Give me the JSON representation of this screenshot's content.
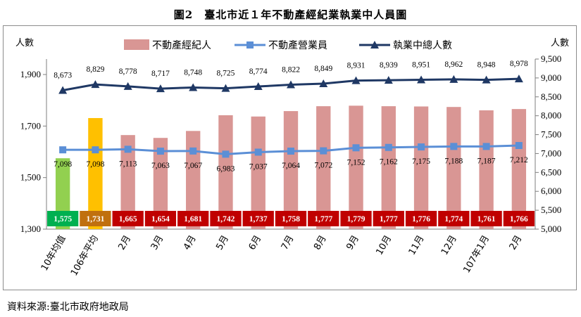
{
  "figure_title": "圖2　臺北市近１年不動產經紀業執業中人員圖",
  "source_note": "資料來源:臺北市政府地政局",
  "chart_data": {
    "type": "bar",
    "title": "圖2　臺北市近１年不動產經紀業執業中人員圖",
    "categories": [
      "10年均值",
      "106年平均",
      "2月",
      "3月",
      "4月",
      "5月",
      "6月",
      "7月",
      "8月",
      "9月",
      "10月",
      "11月",
      "12月",
      "107年1月",
      "2月"
    ],
    "left_axis": {
      "label": "人數",
      "ticks": [
        "1,300",
        "1,500",
        "1,700",
        "1,900"
      ],
      "ylim": [
        1300,
        1900
      ]
    },
    "right_axis": {
      "label": "人數",
      "ticks": [
        "5,000",
        "5,500",
        "6,000",
        "6,500",
        "7,000",
        "7,500",
        "8,000",
        "8,500",
        "9,000",
        "9,500"
      ],
      "ylim": [
        5000,
        9500
      ]
    },
    "series": [
      {
        "name": "不動產經紀人",
        "kind": "bar",
        "axis": "left",
        "color": "#d99694",
        "values": [
          1575,
          1731,
          1665,
          1654,
          1681,
          1742,
          1737,
          1758,
          1777,
          1779,
          1777,
          1776,
          1774,
          1761,
          1766
        ],
        "labels": [
          "1,575",
          "1,731",
          "1,665",
          "1,654",
          "1,681",
          "1,742",
          "1,737",
          "1,758",
          "1,777",
          "1,779",
          "1,777",
          "1,776",
          "1,774",
          "1,761",
          "1,766"
        ],
        "bar_colors": [
          "#92d050",
          "#ffc000"
        ],
        "label_box_colors": [
          "#00b050",
          "#c0700f",
          "#c00000"
        ]
      },
      {
        "name": "不動產營業員",
        "kind": "line",
        "axis": "right",
        "color": "#5b8fd6",
        "marker": "square",
        "values": [
          7098,
          7098,
          7113,
          7063,
          7067,
          6983,
          7037,
          7064,
          7072,
          7152,
          7162,
          7175,
          7188,
          7187,
          7212
        ],
        "labels": [
          "7,098",
          "7,098",
          "7,113",
          "7,063",
          "7,067",
          "6,983",
          "7,037",
          "7,064",
          "7,072",
          "7,152",
          "7,162",
          "7,175",
          "7,188",
          "7,187",
          "7,212"
        ]
      },
      {
        "name": "執業中總人數",
        "kind": "line",
        "axis": "right",
        "color": "#1f3864",
        "marker": "triangle",
        "values": [
          8673,
          8829,
          8778,
          8717,
          8748,
          8725,
          8774,
          8822,
          8849,
          8931,
          8939,
          8951,
          8962,
          8948,
          8978
        ],
        "labels": [
          "8,673",
          "8,829",
          "8,778",
          "8,717",
          "8,748",
          "8,725",
          "8,774",
          "8,822",
          "8,849",
          "8,931",
          "8,939",
          "8,951",
          "8,962",
          "8,948",
          "8,978"
        ]
      }
    ],
    "grid": false,
    "legend": "top"
  }
}
